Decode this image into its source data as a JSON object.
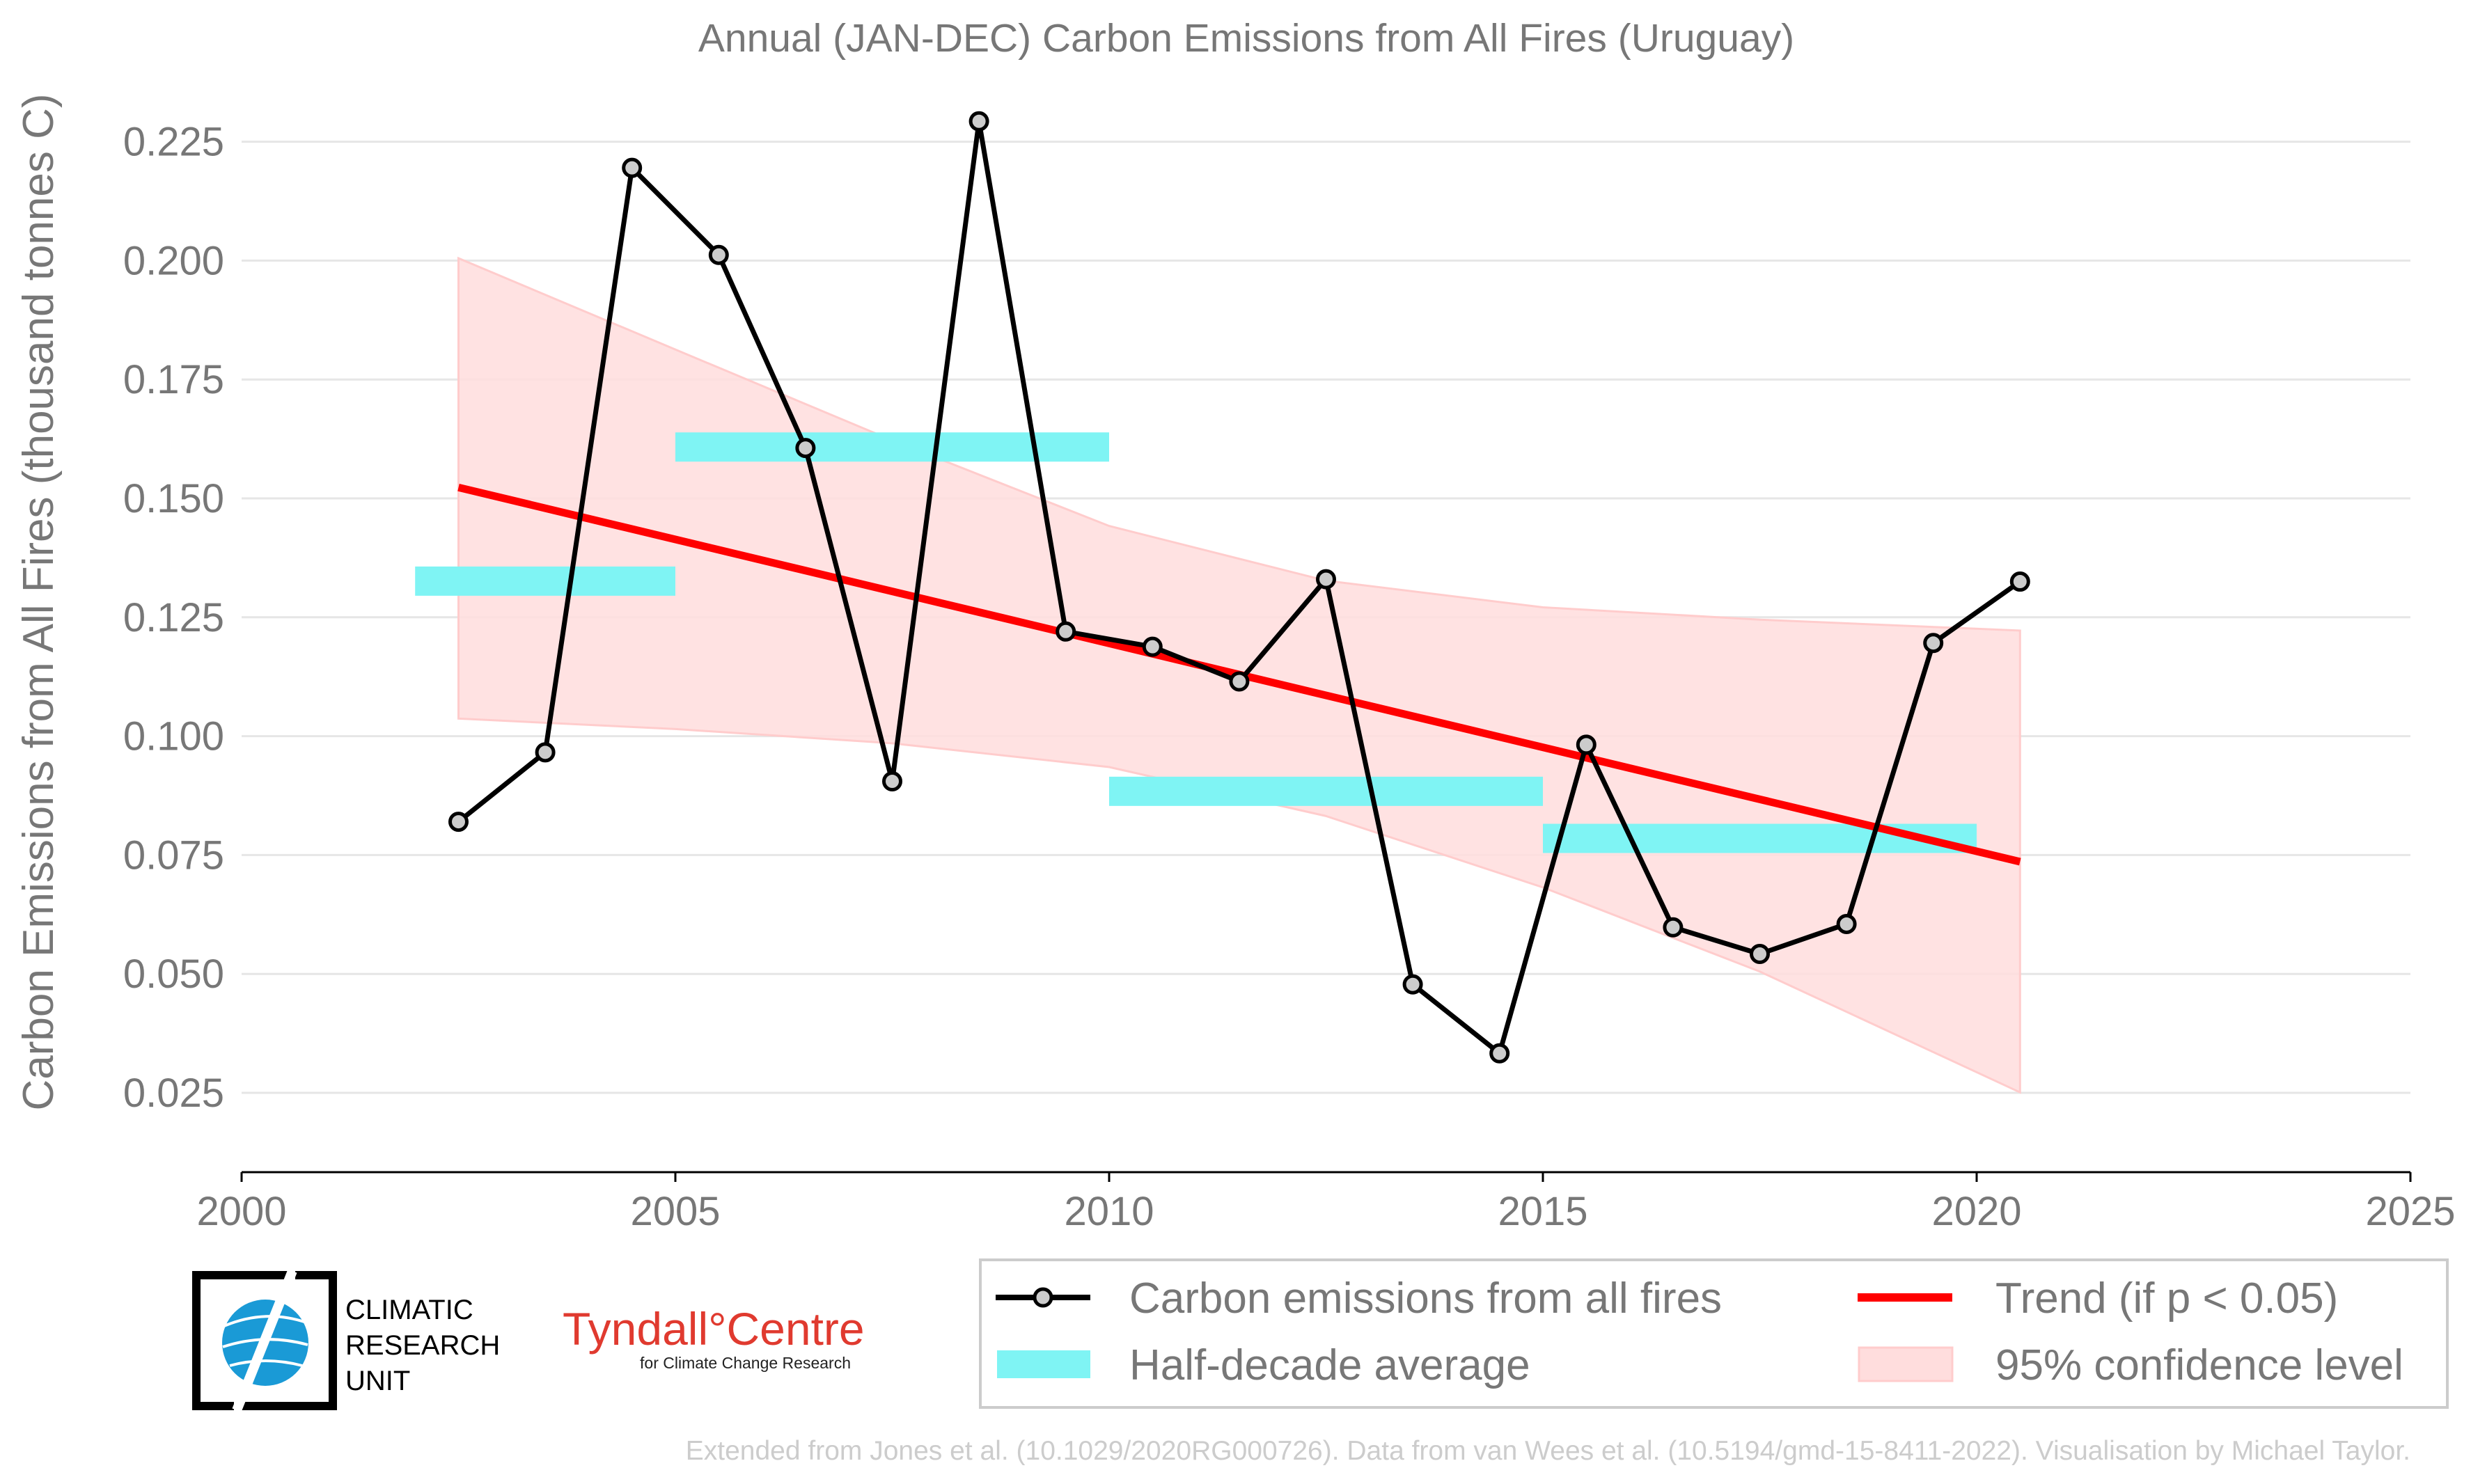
{
  "chart_data": {
    "type": "line",
    "title": "Annual (JAN-DEC) Carbon Emissions from All Fires (Uruguay)",
    "xlabel": "",
    "ylabel": "Carbon Emissions from All Fires (thousand tonnes C)",
    "xlim": [
      2000,
      2025
    ],
    "ylim": [
      0.01,
      0.235
    ],
    "xticks": [
      2000,
      2005,
      2010,
      2015,
      2020,
      2025
    ],
    "xtick_labels": [
      "2000",
      "2005",
      "2010",
      "2015",
      "2020",
      "2025"
    ],
    "yticks": [
      0.025,
      0.05,
      0.075,
      0.1,
      0.125,
      0.15,
      0.175,
      0.2,
      0.225
    ],
    "ytick_labels": [
      "0.025",
      "0.050",
      "0.075",
      "0.100",
      "0.125",
      "0.150",
      "0.175",
      "0.200",
      "0.225"
    ],
    "grid": "horizontal",
    "legend_position": "bottom-right, below plot",
    "series": [
      {
        "name": "Carbon emissions from all fires",
        "color": "#000000",
        "marker_fill": "#cccccc",
        "x": [
          2002.5,
          2003.5,
          2004.5,
          2005.5,
          2006.5,
          2007.5,
          2008.5,
          2009.5,
          2010.5,
          2011.5,
          2012.5,
          2013.5,
          2014.5,
          2015.5,
          2016.5,
          2017.5,
          2018.5,
          2019.5,
          2020.5
        ],
        "values": [
          0.082,
          0.0966,
          0.2195,
          0.2012,
          0.1606,
          0.0905,
          0.2293,
          0.122,
          0.1188,
          0.1115,
          0.133,
          0.0478,
          0.0333,
          0.0982,
          0.0598,
          0.0542,
          0.0605,
          0.1196,
          0.1325
        ]
      },
      {
        "name": "Half-decade average",
        "color": "#7ff4f4",
        "segments": [
          {
            "x0": 2002,
            "x1": 2005,
            "value": 0.1326
          },
          {
            "x0": 2005,
            "x1": 2010,
            "value": 0.1608
          },
          {
            "x0": 2010,
            "x1": 2015,
            "value": 0.0884
          },
          {
            "x0": 2015,
            "x1": 2020,
            "value": 0.0785
          }
        ]
      },
      {
        "name": "Trend (if p < 0.05)",
        "color": "#ff0000",
        "x": [
          2002.5,
          2020.5
        ],
        "values": [
          0.1523,
          0.0736
        ]
      },
      {
        "name": "95% confidence level",
        "color": "#ffdddd",
        "x": [
          2002.5,
          2005,
          2007.5,
          2010,
          2012.5,
          2015,
          2017.5,
          2020.5
        ],
        "upper": [
          0.2005,
          0.1813,
          0.1622,
          0.1442,
          0.1327,
          0.1271,
          0.1245,
          0.1222
        ],
        "lower": [
          0.1037,
          0.1015,
          0.0985,
          0.0935,
          0.0832,
          0.0682,
          0.0505,
          0.0251
        ]
      }
    ]
  },
  "legend": {
    "items": [
      {
        "label": "Carbon emissions from all fires"
      },
      {
        "label": "Trend (if p < 0.05)"
      },
      {
        "label": "Half-decade average"
      },
      {
        "label": "95% confidence level"
      }
    ]
  },
  "logos": {
    "cru_lines": [
      "CLIMATIC",
      "RESEARCH",
      "UNIT"
    ],
    "tyndall_main": "Tyndall°Centre",
    "tyndall_sub": "for Climate Change Research"
  },
  "footer": {
    "credit": "Extended from Jones et al. (10.1029/2020RG000726). Data from van Wees et al. (10.5194/gmd-15-8411-2022). Visualisation by Michael Taylor."
  }
}
